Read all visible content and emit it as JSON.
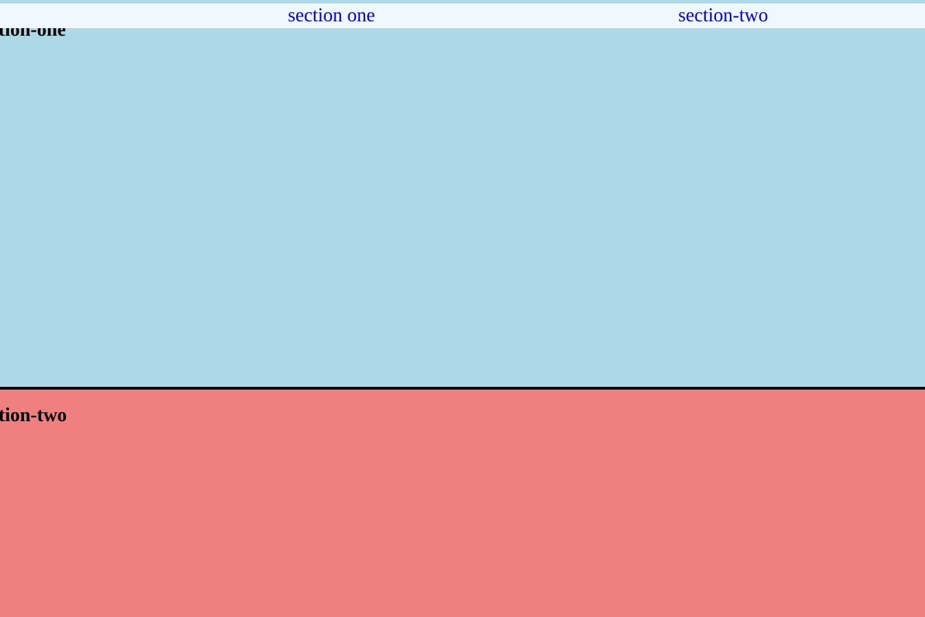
{
  "nav": {
    "links": [
      {
        "label": "section one"
      },
      {
        "label": "section-two"
      }
    ],
    "background": "#f0f8ff",
    "link_color": "#0000ee"
  },
  "sections": [
    {
      "heading": "section-one",
      "background": "#add8e6"
    },
    {
      "heading": "section-two",
      "background": "#f08080"
    }
  ]
}
